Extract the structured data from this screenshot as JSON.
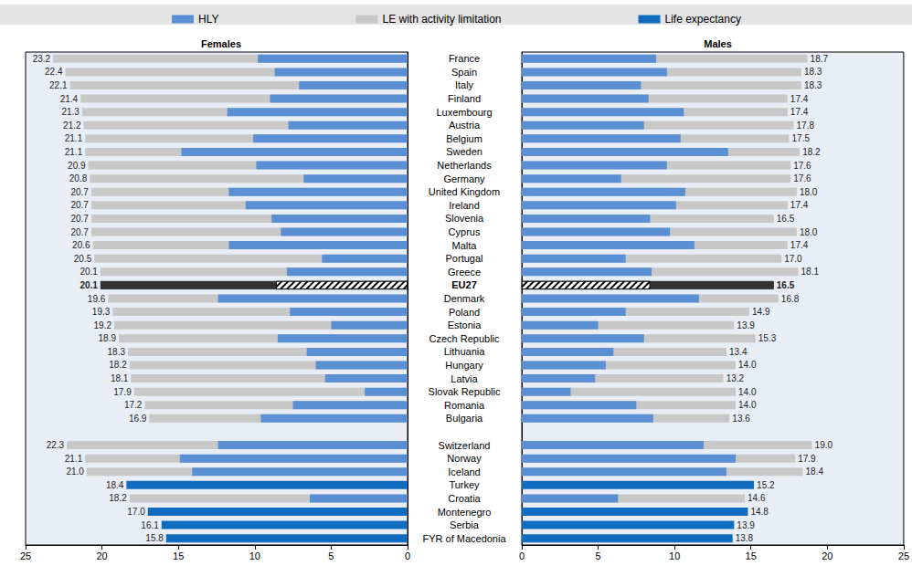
{
  "chart_data": {
    "type": "bar",
    "orientation": "horizontal",
    "data_labels": true,
    "legend": "top",
    "categories": [
      "France",
      "Spain",
      "Italy",
      "Finland",
      "Luxembourg",
      "Austria",
      "Belgium",
      "Sweden",
      "Netherlands",
      "Germany",
      "United Kingdom",
      "Ireland",
      "Slovenia",
      "Cyprus",
      "Malta",
      "Portugal",
      "Greece",
      "EU27",
      "Denmark",
      "Poland",
      "Estonia",
      "Czech Republic",
      "Lithuania",
      "Hungary",
      "Latvia",
      "Slovak Republic",
      "Romania",
      "Bulgaria",
      null,
      "Switzerland",
      "Norway",
      "Iceland",
      "Turkey",
      "Croatia",
      "Montenegro",
      "Serbia",
      "FYR of Macedonia"
    ],
    "panels": [
      {
        "title": "Females",
        "xlim": [
          0,
          25
        ],
        "xticks": [
          0,
          5,
          10,
          15,
          20,
          25
        ],
        "series": [
          {
            "name": "LE with activity limitation",
            "color": "#c8c8c8",
            "values": [
              23.2,
              22.4,
              22.1,
              21.4,
              21.3,
              21.2,
              21.1,
              21.1,
              20.9,
              20.8,
              20.7,
              20.7,
              20.7,
              20.7,
              20.6,
              20.5,
              20.1,
              20.1,
              19.6,
              19.3,
              19.2,
              18.9,
              18.3,
              18.2,
              18.1,
              17.9,
              17.2,
              16.9,
              null,
              22.3,
              21.1,
              21.0,
              null,
              18.2,
              null,
              null,
              null
            ],
            "value_labels": [
              "23.2",
              "22.4",
              "22.1",
              "21.4",
              "21.3",
              "21.2",
              "21.1",
              "21.1",
              "20.9",
              "20.8",
              "20.7",
              "20.7",
              "20.7",
              "20.7",
              "20.6",
              "20.5",
              "20.1",
              "20.1",
              "19.6",
              "19.3",
              "19.2",
              "18.9",
              "18.3",
              "18.2",
              "18.1",
              "17.9",
              "17.2",
              "16.9",
              null,
              "22.3",
              "21.1",
              "21.0",
              null,
              "18.2",
              null,
              null,
              null
            ],
            "colors": [
              "#c8c8c8",
              "#c8c8c8",
              "#c8c8c8",
              "#c8c8c8",
              "#c8c8c8",
              "#c8c8c8",
              "#c8c8c8",
              "#c8c8c8",
              "#c8c8c8",
              "#c8c8c8",
              "#c8c8c8",
              "#c8c8c8",
              "#c8c8c8",
              "#c8c8c8",
              "#c8c8c8",
              "#c8c8c8",
              "#c8c8c8",
              "#333333",
              "#c8c8c8",
              "#c8c8c8",
              "#c8c8c8",
              "#c8c8c8",
              "#c8c8c8",
              "#c8c8c8",
              "#c8c8c8",
              "#c8c8c8",
              "#c8c8c8",
              "#c8c8c8",
              "#c8c8c8",
              "#c8c8c8",
              "#c8c8c8",
              "#c8c8c8",
              "#c8c8c8",
              "#c8c8c8",
              "#c8c8c8",
              "#c8c8c8",
              "#c8c8c8"
            ]
          },
          {
            "name": "Life expectancy",
            "color": "#0f6cbf",
            "values": [
              null,
              null,
              null,
              null,
              null,
              null,
              null,
              null,
              null,
              null,
              null,
              null,
              null,
              null,
              null,
              null,
              null,
              null,
              null,
              null,
              null,
              null,
              null,
              null,
              null,
              null,
              null,
              null,
              null,
              null,
              null,
              null,
              18.4,
              null,
              17.0,
              16.1,
              15.8
            ],
            "value_labels": [
              null,
              null,
              null,
              null,
              null,
              null,
              null,
              null,
              null,
              null,
              null,
              null,
              null,
              null,
              null,
              null,
              null,
              null,
              null,
              null,
              null,
              null,
              null,
              null,
              null,
              null,
              null,
              null,
              null,
              null,
              null,
              null,
              "18.4",
              null,
              "17.0",
              "16.1",
              "15.8"
            ]
          },
          {
            "name": "HLY",
            "color": "#5b8fd4",
            "values": [
              9.8,
              8.7,
              7.1,
              9.0,
              11.8,
              7.8,
              10.1,
              14.8,
              9.9,
              6.8,
              11.7,
              10.6,
              8.9,
              8.3,
              11.7,
              5.6,
              7.9,
              8.6,
              12.4,
              7.7,
              5.0,
              8.5,
              6.6,
              6.0,
              5.4,
              2.8,
              7.5,
              9.6,
              null,
              12.4,
              14.9,
              14.1,
              null,
              6.4,
              null,
              null,
              null
            ],
            "colors": [
              "#5b8fd4",
              "#5b8fd4",
              "#5b8fd4",
              "#5b8fd4",
              "#5b8fd4",
              "#5b8fd4",
              "#5b8fd4",
              "#5b8fd4",
              "#5b8fd4",
              "#5b8fd4",
              "#5b8fd4",
              "#5b8fd4",
              "#5b8fd4",
              "#5b8fd4",
              "#5b8fd4",
              "#5b8fd4",
              "#5b8fd4",
              "#ffffff",
              "#5b8fd4",
              "#5b8fd4",
              "#5b8fd4",
              "#5b8fd4",
              "#5b8fd4",
              "#5b8fd4",
              "#5b8fd4",
              "#5b8fd4",
              "#5b8fd4",
              "#5b8fd4",
              "#5b8fd4",
              "#5b8fd4",
              "#5b8fd4",
              "#5b8fd4",
              "#5b8fd4",
              "#5b8fd4",
              "#5b8fd4",
              "#5b8fd4",
              "#5b8fd4"
            ]
          }
        ]
      },
      {
        "title": "Males",
        "xlim": [
          0,
          25
        ],
        "xticks": [
          0,
          5,
          10,
          15,
          20,
          25
        ],
        "series": [
          {
            "name": "LE with activity limitation",
            "color": "#c8c8c8",
            "values": [
              18.7,
              18.3,
              18.3,
              17.4,
              17.4,
              17.8,
              17.5,
              18.2,
              17.6,
              17.6,
              18.0,
              17.4,
              16.5,
              18.0,
              17.4,
              17.0,
              18.1,
              16.5,
              16.8,
              14.9,
              13.9,
              15.3,
              13.4,
              14.0,
              13.2,
              14.0,
              14.0,
              13.6,
              null,
              19.0,
              17.9,
              18.4,
              null,
              14.6,
              null,
              null,
              null
            ],
            "value_labels": [
              "18.7",
              "18.3",
              "18.3",
              "17.4",
              "17.4",
              "17.8",
              "17.5",
              "18.2",
              "17.6",
              "17.6",
              "18.0",
              "17.4",
              "16.5",
              "18.0",
              "17.4",
              "17.0",
              "18.1",
              "16.5",
              "16.8",
              "14.9",
              "13.9",
              "15.3",
              "13.4",
              "14.0",
              "13.2",
              "14.0",
              "14.0",
              "13.6",
              null,
              "19.0",
              "17.9",
              "18.4",
              null,
              "14.6",
              null,
              null,
              null
            ],
            "colors": [
              "#c8c8c8",
              "#c8c8c8",
              "#c8c8c8",
              "#c8c8c8",
              "#c8c8c8",
              "#c8c8c8",
              "#c8c8c8",
              "#c8c8c8",
              "#c8c8c8",
              "#c8c8c8",
              "#c8c8c8",
              "#c8c8c8",
              "#c8c8c8",
              "#c8c8c8",
              "#c8c8c8",
              "#c8c8c8",
              "#c8c8c8",
              "#333333",
              "#c8c8c8",
              "#c8c8c8",
              "#c8c8c8",
              "#c8c8c8",
              "#c8c8c8",
              "#c8c8c8",
              "#c8c8c8",
              "#c8c8c8",
              "#c8c8c8",
              "#c8c8c8",
              "#c8c8c8",
              "#c8c8c8",
              "#c8c8c8",
              "#c8c8c8",
              "#c8c8c8",
              "#c8c8c8",
              "#c8c8c8",
              "#c8c8c8",
              "#c8c8c8"
            ]
          },
          {
            "name": "Life expectancy",
            "color": "#0f6cbf",
            "values": [
              null,
              null,
              null,
              null,
              null,
              null,
              null,
              null,
              null,
              null,
              null,
              null,
              null,
              null,
              null,
              null,
              null,
              null,
              null,
              null,
              null,
              null,
              null,
              null,
              null,
              null,
              null,
              null,
              null,
              null,
              null,
              null,
              15.2,
              null,
              14.8,
              13.9,
              13.8
            ],
            "value_labels": [
              null,
              null,
              null,
              null,
              null,
              null,
              null,
              null,
              null,
              null,
              null,
              null,
              null,
              null,
              null,
              null,
              null,
              null,
              null,
              null,
              null,
              null,
              null,
              null,
              null,
              null,
              null,
              null,
              null,
              null,
              null,
              null,
              "15.2",
              null,
              "14.8",
              "13.9",
              "13.8"
            ]
          },
          {
            "name": "HLY",
            "color": "#5b8fd4",
            "values": [
              8.8,
              9.5,
              7.8,
              8.3,
              10.6,
              8.0,
              10.4,
              13.5,
              9.5,
              6.5,
              10.7,
              10.1,
              8.4,
              9.7,
              11.3,
              6.8,
              8.5,
              8.4,
              11.6,
              6.8,
              5.0,
              8.0,
              6.0,
              5.5,
              4.8,
              3.2,
              7.5,
              8.6,
              null,
              11.9,
              14.0,
              13.4,
              null,
              6.3,
              null,
              null,
              null
            ],
            "colors": [
              "#5b8fd4",
              "#5b8fd4",
              "#5b8fd4",
              "#5b8fd4",
              "#5b8fd4",
              "#5b8fd4",
              "#5b8fd4",
              "#5b8fd4",
              "#5b8fd4",
              "#5b8fd4",
              "#5b8fd4",
              "#5b8fd4",
              "#5b8fd4",
              "#5b8fd4",
              "#5b8fd4",
              "#5b8fd4",
              "#5b8fd4",
              "#ffffff",
              "#5b8fd4",
              "#5b8fd4",
              "#5b8fd4",
              "#5b8fd4",
              "#5b8fd4",
              "#5b8fd4",
              "#5b8fd4",
              "#5b8fd4",
              "#5b8fd4",
              "#5b8fd4",
              "#5b8fd4",
              "#5b8fd4",
              "#5b8fd4",
              "#5b8fd4",
              "#5b8fd4",
              "#5b8fd4",
              "#5b8fd4",
              "#5b8fd4",
              "#5b8fd4"
            ]
          }
        ]
      }
    ]
  }
}
